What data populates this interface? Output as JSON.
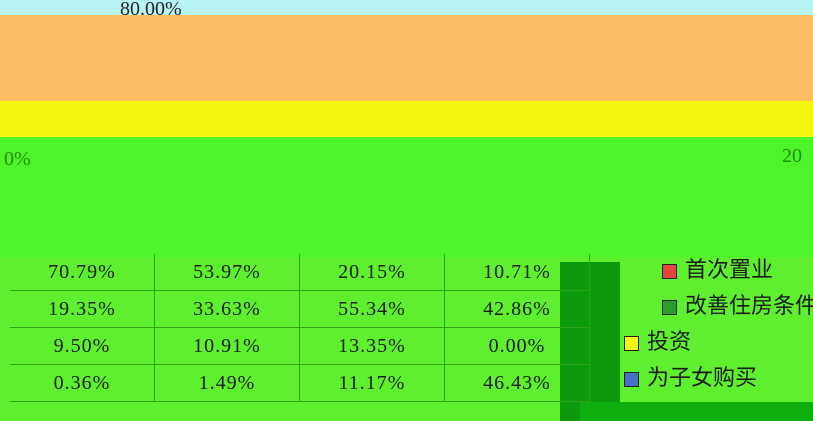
{
  "axis": {
    "top_label": "80.00%",
    "left_label": "0%",
    "right_label": "20"
  },
  "table": {
    "rows": [
      [
        "70.79%",
        "53.97%",
        "20.15%",
        "10.71%"
      ],
      [
        "19.35%",
        "33.63%",
        "55.34%",
        "42.86%"
      ],
      [
        "9.50%",
        "10.91%",
        "13.35%",
        "0.00%"
      ],
      [
        "0.36%",
        "1.49%",
        "11.17%",
        "46.43%"
      ]
    ]
  },
  "legend": [
    "首次置业",
    "改善住房条件",
    "投资",
    "为子女购买"
  ]
}
